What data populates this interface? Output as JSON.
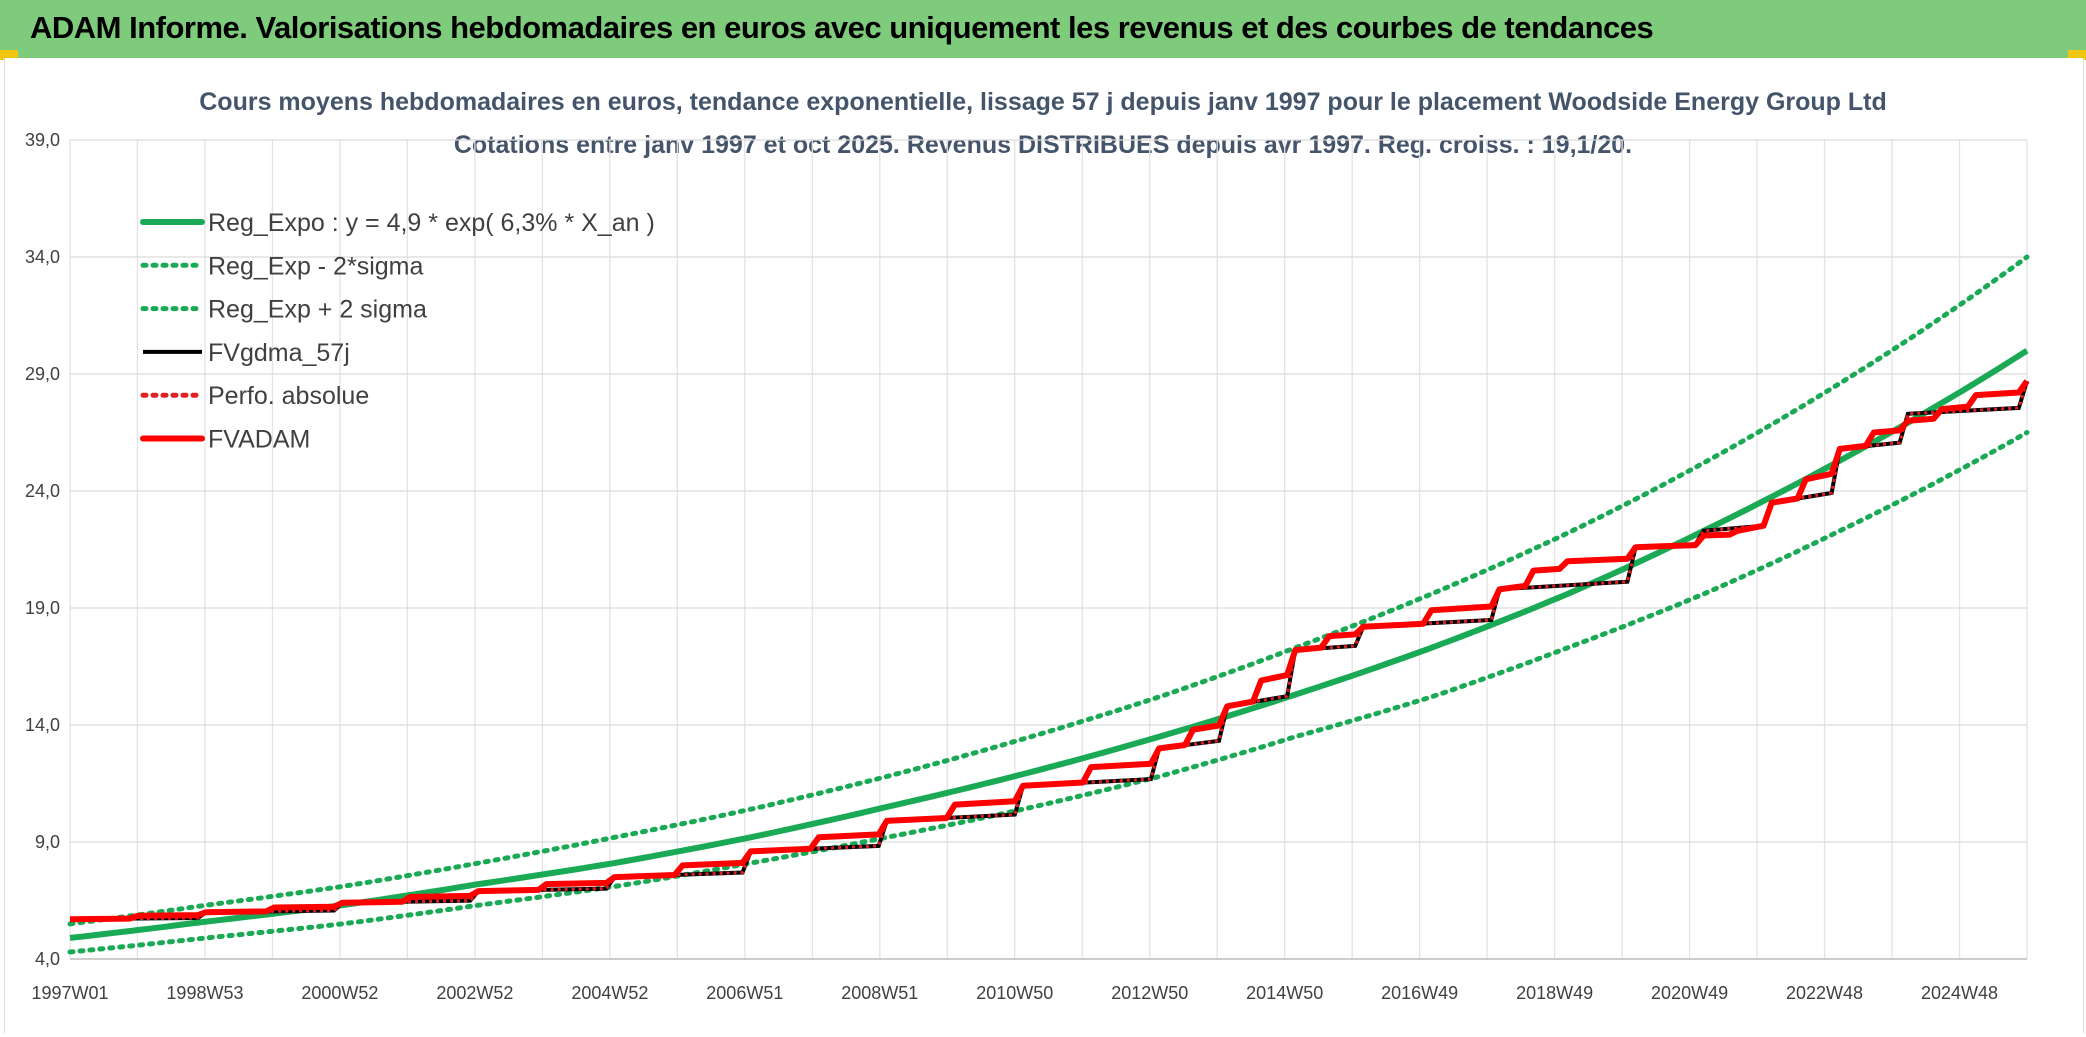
{
  "header": {
    "title": "ADAM Informe. Valorisations hebdomadaires en euros avec uniquement les revenus et des courbes de tendances"
  },
  "chart_data": {
    "type": "line",
    "title": "Cours moyens hebdomadaires en euros, tendance exponentielle, lissage 57 j depuis janv 1997 pour le placement Woodside Energy Group Ltd",
    "subtitle": "Cotations entre janv 1997 et oct 2025. Revenus DISTRIBUES depuis avr 1997.  Reg. croiss. : 19,1/20.",
    "xlabel": "",
    "ylabel": "",
    "ylim": [
      4.0,
      39.0
    ],
    "yticks": [
      "39,0",
      "34,0",
      "29,0",
      "24,0",
      "19,0",
      "14,0",
      "9,0",
      "4,0"
    ],
    "xlim": [
      1997.0,
      2025.75
    ],
    "xtick_labels": [
      "1997W01",
      "1998W53",
      "2000W52",
      "2002W52",
      "2004W52",
      "2006W51",
      "2008W51",
      "2010W50",
      "2012W50",
      "2014W50",
      "2016W49",
      "2018W49",
      "2020W49",
      "2022W48",
      "2024W48"
    ],
    "grid": true,
    "legend_position": "top-left",
    "series": [
      {
        "name": "Reg_Expo : y = 4,9 * exp( 6,3% *  X_an )",
        "color": "#1aaa55",
        "style": "solid",
        "x": [
          1997,
          1999,
          2001,
          2003,
          2005,
          2007,
          2009,
          2011,
          2013,
          2015,
          2017,
          2019,
          2021,
          2023,
          2025.75
        ],
        "y": [
          4.9,
          5.6,
          6.3,
          7.2,
          8.1,
          9.2,
          10.5,
          11.9,
          13.5,
          15.3,
          17.3,
          19.6,
          22.3,
          25.3,
          30.0
        ]
      },
      {
        "name": "Reg_Exp - 2*sigma",
        "color": "#1aaa55",
        "style": "dotted",
        "x": [
          1997,
          1999,
          2001,
          2003,
          2005,
          2007,
          2009,
          2011,
          2013,
          2015,
          2017,
          2019,
          2021,
          2023,
          2025.75
        ],
        "y": [
          4.3,
          4.9,
          5.5,
          6.3,
          7.1,
          8.1,
          9.2,
          10.4,
          11.8,
          13.5,
          15.2,
          17.3,
          19.6,
          22.3,
          26.5
        ]
      },
      {
        "name": "Reg_Exp + 2 sigma",
        "color": "#1aaa55",
        "style": "dotted",
        "x": [
          1997,
          1999,
          2001,
          2003,
          2005,
          2007,
          2009,
          2011,
          2013,
          2015,
          2017,
          2019,
          2021,
          2023,
          2025.75
        ],
        "y": [
          5.5,
          6.3,
          7.1,
          8.1,
          9.2,
          10.4,
          11.8,
          13.4,
          15.2,
          17.3,
          19.6,
          22.2,
          25.2,
          28.6,
          34.0
        ]
      },
      {
        "name": "FVgdma_57j",
        "color": "#000000",
        "style": "solid",
        "x": [
          1997,
          1999,
          2001,
          2003,
          2005,
          2007,
          2009,
          2011,
          2013,
          2014,
          2015,
          2016,
          2018,
          2020,
          2021,
          2022,
          2023,
          2024,
          2025.75
        ],
        "y": [
          5.7,
          6.0,
          6.4,
          6.9,
          7.5,
          8.6,
          9.9,
          11.4,
          13.0,
          14.8,
          17.2,
          18.2,
          19.8,
          21.6,
          22.3,
          23.5,
          25.8,
          27.3,
          28.7
        ]
      },
      {
        "name": "Perfo. absolue",
        "color": "#e02020",
        "style": "dotted",
        "x": [
          1997,
          1999,
          2001,
          2003,
          2005,
          2007,
          2009,
          2011,
          2013,
          2014,
          2015,
          2016,
          2018,
          2020,
          2021,
          2022,
          2023,
          2024,
          2025.75
        ],
        "y": [
          5.7,
          6.0,
          6.4,
          6.9,
          7.5,
          8.6,
          9.9,
          11.4,
          13.0,
          14.8,
          17.2,
          18.2,
          19.8,
          21.6,
          22.3,
          23.5,
          25.8,
          27.3,
          28.7
        ]
      },
      {
        "name": "FVADAM",
        "color": "#ff0000",
        "style": "solid-step",
        "x": [
          1997,
          1998,
          1999,
          2000,
          2001,
          2002,
          2003,
          2004,
          2005,
          2006,
          2007,
          2008,
          2009,
          2010,
          2011,
          2012,
          2013,
          2013.5,
          2014,
          2014.5,
          2015,
          2015.5,
          2016,
          2017,
          2018,
          2018.5,
          2019,
          2020,
          2021,
          2021.5,
          2022,
          2022.5,
          2023,
          2023.5,
          2024,
          2024.5,
          2025,
          2025.75
        ],
        "y": [
          5.7,
          5.85,
          6.0,
          6.2,
          6.4,
          6.65,
          6.9,
          7.2,
          7.5,
          8.0,
          8.6,
          9.2,
          9.9,
          10.6,
          11.4,
          12.2,
          13.0,
          13.8,
          14.8,
          15.9,
          17.2,
          17.8,
          18.2,
          18.9,
          19.8,
          20.6,
          21.0,
          21.6,
          22.1,
          22.3,
          23.5,
          24.5,
          25.8,
          26.5,
          27.0,
          27.5,
          28.1,
          28.7
        ]
      }
    ]
  }
}
